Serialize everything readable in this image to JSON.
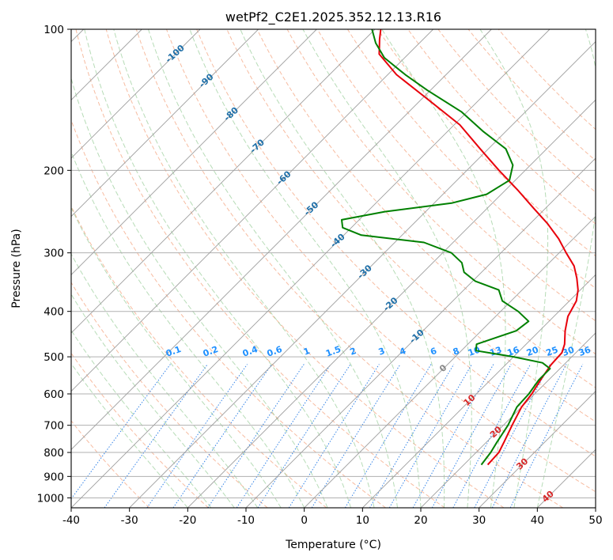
{
  "chart_data": {
    "type": "line",
    "title": "wetPf2_C2E1.2025.352.12.13.R16",
    "xlabel": "Temperature (°C)",
    "ylabel": "Pressure (hPa)",
    "xlim": [
      -40,
      50
    ],
    "ylim": [
      1050,
      100
    ],
    "y_scale": "log",
    "skew": true,
    "x_ticks": [
      -40,
      -30,
      -20,
      -10,
      0,
      10,
      20,
      30,
      40,
      50
    ],
    "y_ticks": [
      1000,
      900,
      800,
      700,
      600,
      500,
      400,
      300,
      200,
      100
    ],
    "grid": true,
    "colors": {
      "temperature": "#e8000b",
      "dewpoint": "#008000",
      "dry_adiabat": "#f4a582",
      "moist_adiabat": "#90c990",
      "mixing_ratio": "#1f77e4",
      "isotherm": "#9e9e9e",
      "isobar": "#b0b0b0",
      "adiabat_label": "#1f6fa8",
      "mixing_label": "#1e90ff",
      "wetbulb_label": "#d62728"
    },
    "series": [
      {
        "name": "",
        "role": "temperature",
        "points": [
          {
            "p": 850,
            "t": 24.1
          },
          {
            "p": 800,
            "t": 23.9
          },
          {
            "p": 760,
            "t": 23.0
          },
          {
            "p": 700,
            "t": 21.5
          },
          {
            "p": 640,
            "t": 20.0
          },
          {
            "p": 600,
            "t": 19.5
          },
          {
            "p": 560,
            "t": 18.6
          },
          {
            "p": 520,
            "t": 17.8
          },
          {
            "p": 490,
            "t": 17.6
          },
          {
            "p": 470,
            "t": 16.6
          },
          {
            "p": 440,
            "t": 14.4
          },
          {
            "p": 410,
            "t": 12.4
          },
          {
            "p": 380,
            "t": 11.2
          },
          {
            "p": 360,
            "t": 9.6
          },
          {
            "p": 340,
            "t": 7.4
          },
          {
            "p": 320,
            "t": 4.8
          },
          {
            "p": 300,
            "t": 1.2
          },
          {
            "p": 280,
            "t": -2.5
          },
          {
            "p": 260,
            "t": -7.0
          },
          {
            "p": 240,
            "t": -12.3
          },
          {
            "p": 220,
            "t": -18.0
          },
          {
            "p": 200,
            "t": -24.5
          },
          {
            "p": 180,
            "t": -31.4
          },
          {
            "p": 160,
            "t": -39.0
          },
          {
            "p": 140,
            "t": -49.5
          },
          {
            "p": 125,
            "t": -58.5
          },
          {
            "p": 113,
            "t": -65.0
          },
          {
            "p": 105,
            "t": -67.5
          },
          {
            "p": 100,
            "t": -69.0
          }
        ]
      },
      {
        "name": "",
        "role": "dewpoint",
        "points": [
          {
            "p": 850,
            "t": 23.0
          },
          {
            "p": 800,
            "t": 22.5
          },
          {
            "p": 760,
            "t": 21.8
          },
          {
            "p": 700,
            "t": 20.8
          },
          {
            "p": 640,
            "t": 19.2
          },
          {
            "p": 600,
            "t": 19.0
          },
          {
            "p": 560,
            "t": 18.3
          },
          {
            "p": 530,
            "t": 18.3
          },
          {
            "p": 515,
            "t": 16.0
          },
          {
            "p": 500,
            "t": 10.0
          },
          {
            "p": 485,
            "t": 2.5
          },
          {
            "p": 470,
            "t": 1.5
          },
          {
            "p": 460,
            "t": 3.0
          },
          {
            "p": 440,
            "t": 6.0
          },
          {
            "p": 420,
            "t": 6.5
          },
          {
            "p": 400,
            "t": 3.0
          },
          {
            "p": 380,
            "t": -1.5
          },
          {
            "p": 360,
            "t": -4.0
          },
          {
            "p": 345,
            "t": -9.5
          },
          {
            "p": 330,
            "t": -13.0
          },
          {
            "p": 315,
            "t": -15.0
          },
          {
            "p": 300,
            "t": -18.5
          },
          {
            "p": 285,
            "t": -25.0
          },
          {
            "p": 275,
            "t": -37.0
          },
          {
            "p": 265,
            "t": -41.5
          },
          {
            "p": 255,
            "t": -43.0
          },
          {
            "p": 245,
            "t": -37.0
          },
          {
            "p": 235,
            "t": -27.0
          },
          {
            "p": 225,
            "t": -22.5
          },
          {
            "p": 210,
            "t": -21.0
          },
          {
            "p": 195,
            "t": -23.0
          },
          {
            "p": 180,
            "t": -27.0
          },
          {
            "p": 165,
            "t": -34.0
          },
          {
            "p": 150,
            "t": -41.0
          },
          {
            "p": 135,
            "t": -50.5
          },
          {
            "p": 125,
            "t": -57.0
          },
          {
            "p": 115,
            "t": -63.5
          },
          {
            "p": 107,
            "t": -67.5
          },
          {
            "p": 100,
            "t": -70.5
          }
        ]
      }
    ],
    "dry_adiabat_labels": [
      -100,
      -90,
      -80,
      -70,
      -60,
      -50,
      -40,
      -30,
      -20,
      -10,
      0,
      10,
      20,
      30,
      40
    ],
    "mixing_ratio_labels": [
      "0.1",
      "0.2",
      "0.4",
      "0.6",
      "1",
      "1.5",
      "2",
      "3",
      "4",
      "6",
      "8",
      "10",
      "13",
      "16",
      "20",
      "25",
      "30",
      "36"
    ]
  }
}
